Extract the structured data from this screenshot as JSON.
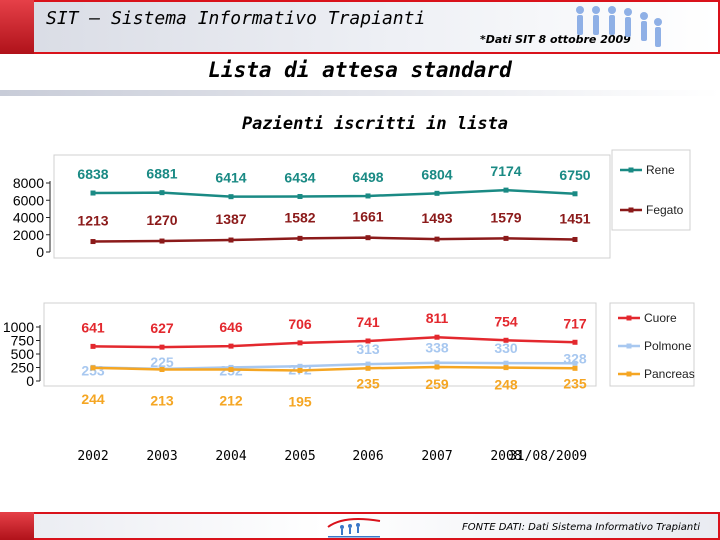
{
  "header": {
    "app_title": "SIT – Sistema Informativo Trapianti",
    "source_note": "*Dati SIT 8 ottobre 2009"
  },
  "slide_title": "Lista di attesa standard",
  "footer": {
    "source": "FONTE DATI: Dati Sistema Informativo Trapianti"
  },
  "colors": {
    "rene": "#1a8a84",
    "fegato": "#8b1a1a",
    "cuore": "#e3282e",
    "polmone": "#a8c8f0",
    "pancreas": "#f5a623",
    "accent": "#d9121b"
  },
  "chart_data": [
    {
      "type": "line",
      "title": "Pazienti iscritti in lista",
      "categories": [
        "2002",
        "2003",
        "2004",
        "2005",
        "2006",
        "2007",
        "2008",
        "31/08/2009"
      ],
      "ylim": [
        0,
        8000
      ],
      "yticks": [
        0,
        2000,
        4000,
        6000,
        8000
      ],
      "legend_position": "right",
      "grid": false,
      "series": [
        {
          "name": "Rene",
          "values": [
            6838,
            6881,
            6414,
            6434,
            6498,
            6804,
            7174,
            6750
          ]
        },
        {
          "name": "Fegato",
          "values": [
            1213,
            1270,
            1387,
            1582,
            1661,
            1493,
            1579,
            1451
          ]
        }
      ]
    },
    {
      "type": "line",
      "categories": [
        "2002",
        "2003",
        "2004",
        "2005",
        "2006",
        "2007",
        "2008",
        "31/08/2009"
      ],
      "ylim": [
        0,
        1000
      ],
      "yticks": [
        0,
        250,
        500,
        750,
        1000
      ],
      "legend_position": "right",
      "grid": false,
      "series": [
        {
          "name": "Cuore",
          "values": [
            641,
            627,
            646,
            706,
            741,
            811,
            754,
            717
          ]
        },
        {
          "name": "Polmone",
          "values": [
            253,
            225,
            252,
            272,
            313,
            338,
            330,
            328
          ]
        },
        {
          "name": "Pancreas",
          "values": [
            244,
            213,
            212,
            195,
            235,
            259,
            248,
            235
          ]
        }
      ]
    }
  ]
}
